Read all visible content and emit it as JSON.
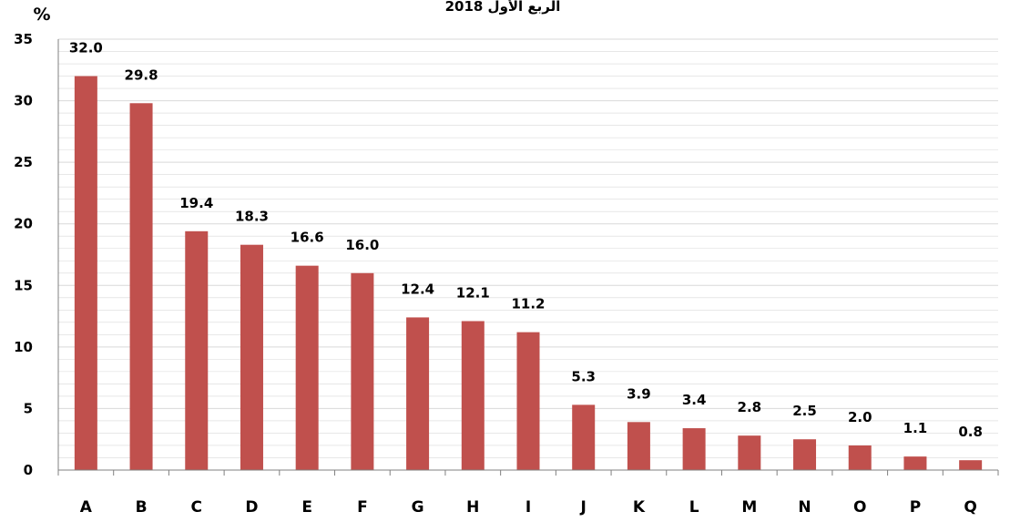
{
  "chart_data": {
    "type": "bar",
    "title": "الربع الأول 2018",
    "ylabel": "%",
    "xlabel": "",
    "categories": [
      "A",
      "B",
      "C",
      "D",
      "E",
      "F",
      "G",
      "H",
      "I",
      "J",
      "K",
      "L",
      "M",
      "N",
      "O",
      "P",
      "Q"
    ],
    "values": [
      32.0,
      29.8,
      19.4,
      18.3,
      16.6,
      16.0,
      12.4,
      12.1,
      11.2,
      5.3,
      3.9,
      3.4,
      2.8,
      2.5,
      2.0,
      1.1,
      0.8
    ],
    "value_labels": [
      "32.0",
      "29.8",
      "19.4",
      "18.3",
      "16.6",
      "16.0",
      "12.4",
      "12.1",
      "11.2",
      "5.3",
      "3.9",
      "3.4",
      "2.8",
      "2.5",
      "2.0",
      "1.1",
      "0.8"
    ],
    "ylim": [
      0,
      35
    ],
    "yticks": [
      0,
      5,
      10,
      15,
      20,
      25,
      30,
      35
    ],
    "grid": true,
    "legend": "none",
    "colors": {
      "bar": "#C0504D",
      "grid": "#D9D9D9",
      "axis": "#808080"
    }
  }
}
